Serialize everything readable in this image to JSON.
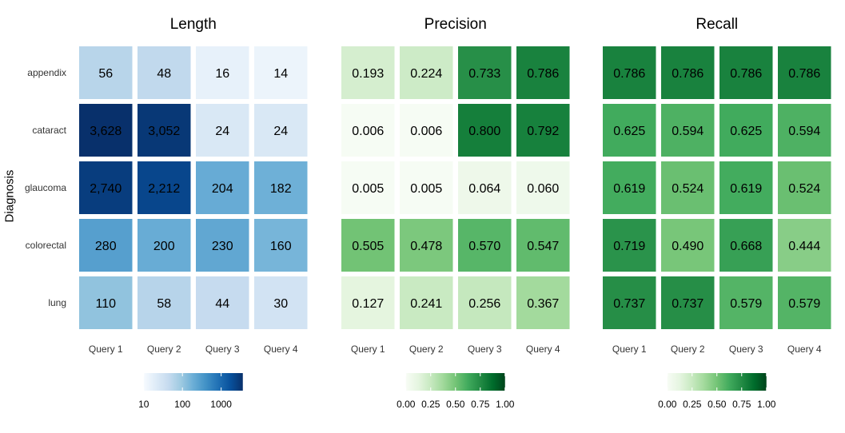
{
  "figure": {
    "ylabel": "Diagnosis",
    "colors": {
      "blues": [
        "#f7fbff",
        "#deebf7",
        "#c6dbef",
        "#9ecae1",
        "#6baed6",
        "#4292c6",
        "#2171b5",
        "#08519c",
        "#08306b"
      ],
      "greens": [
        "#f7fcf5",
        "#e5f5e0",
        "#c7e9c0",
        "#a1d99b",
        "#74c476",
        "#41ab5d",
        "#238b45",
        "#006d2c",
        "#00441b"
      ]
    }
  },
  "chart_data": [
    {
      "type": "heatmap",
      "title": "Length",
      "categories": [
        "Query 1",
        "Query 2",
        "Query 3",
        "Query 4"
      ],
      "rows": [
        "appendix",
        "cataract",
        "glaucoma",
        "colorectal",
        "lung"
      ],
      "values": [
        [
          56,
          48,
          16,
          14
        ],
        [
          3628,
          3052,
          24,
          24
        ],
        [
          2740,
          2212,
          204,
          182
        ],
        [
          280,
          200,
          230,
          160
        ],
        [
          110,
          58,
          44,
          30
        ]
      ],
      "labels": [
        [
          "56",
          "48",
          "16",
          "14"
        ],
        [
          "3,628",
          "3,052",
          "24",
          "24"
        ],
        [
          "2,740",
          "2,212",
          "204",
          "182"
        ],
        [
          "280",
          "200",
          "230",
          "160"
        ],
        [
          "110",
          "58",
          "44",
          "30"
        ]
      ],
      "scale": "log",
      "palette": "blues",
      "legend": {
        "range": [
          10,
          3628
        ],
        "ticks": [
          10,
          100,
          1000
        ],
        "tick_labels": [
          "10",
          "100",
          "1000"
        ],
        "position": "bottom"
      }
    },
    {
      "type": "heatmap",
      "title": "Precision",
      "categories": [
        "Query 1",
        "Query 2",
        "Query 3",
        "Query 4"
      ],
      "rows": [
        "appendix",
        "cataract",
        "glaucoma",
        "colorectal",
        "lung"
      ],
      "values": [
        [
          0.193,
          0.224,
          0.733,
          0.786
        ],
        [
          0.006,
          0.006,
          0.8,
          0.792
        ],
        [
          0.005,
          0.005,
          0.064,
          0.06
        ],
        [
          0.505,
          0.478,
          0.57,
          0.547
        ],
        [
          0.127,
          0.241,
          0.256,
          0.367
        ]
      ],
      "labels": [
        [
          "0.193",
          "0.224",
          "0.733",
          "0.786"
        ],
        [
          "0.006",
          "0.006",
          "0.800",
          "0.792"
        ],
        [
          "0.005",
          "0.005",
          "0.064",
          "0.060"
        ],
        [
          "0.505",
          "0.478",
          "0.570",
          "0.547"
        ],
        [
          "0.127",
          "0.241",
          "0.256",
          "0.367"
        ]
      ],
      "scale": "linear",
      "palette": "greens",
      "legend": {
        "range": [
          0,
          1
        ],
        "ticks": [
          0,
          0.25,
          0.5,
          0.75,
          1
        ],
        "tick_labels": [
          "0.00",
          "0.25",
          "0.50",
          "0.75",
          "1.00"
        ],
        "position": "bottom"
      }
    },
    {
      "type": "heatmap",
      "title": "Recall",
      "categories": [
        "Query 1",
        "Query 2",
        "Query 3",
        "Query 4"
      ],
      "rows": [
        "appendix",
        "cataract",
        "glaucoma",
        "colorectal",
        "lung"
      ],
      "values": [
        [
          0.786,
          0.786,
          0.786,
          0.786
        ],
        [
          0.625,
          0.594,
          0.625,
          0.594
        ],
        [
          0.619,
          0.524,
          0.619,
          0.524
        ],
        [
          0.719,
          0.49,
          0.668,
          0.444
        ],
        [
          0.737,
          0.737,
          0.579,
          0.579
        ]
      ],
      "labels": [
        [
          "0.786",
          "0.786",
          "0.786",
          "0.786"
        ],
        [
          "0.625",
          "0.594",
          "0.625",
          "0.594"
        ],
        [
          "0.619",
          "0.524",
          "0.619",
          "0.524"
        ],
        [
          "0.719",
          "0.490",
          "0.668",
          "0.444"
        ],
        [
          "0.737",
          "0.737",
          "0.579",
          "0.579"
        ]
      ],
      "scale": "linear",
      "palette": "greens",
      "legend": {
        "range": [
          0,
          1
        ],
        "ticks": [
          0,
          0.25,
          0.5,
          0.75,
          1
        ],
        "tick_labels": [
          "0.00",
          "0.25",
          "0.50",
          "0.75",
          "1.00"
        ],
        "position": "bottom"
      }
    }
  ]
}
